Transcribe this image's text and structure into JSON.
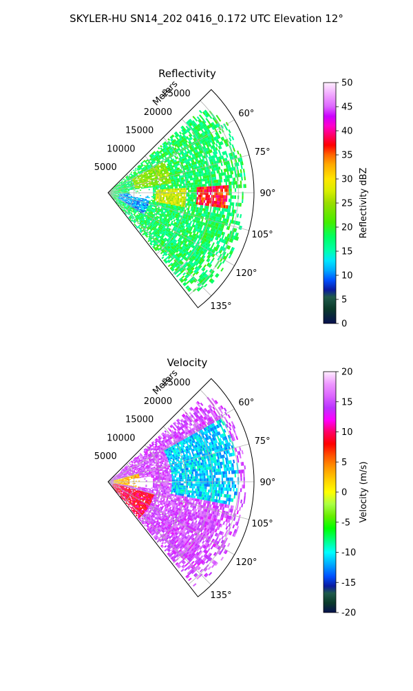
{
  "figure": {
    "suptitle": "SKYLER-HU  SN14_202  0416_0.172 UTC Elevation 12°"
  },
  "chart_data": [
    {
      "type": "heatmap",
      "projection": "polar-sector",
      "title": "Reflectivity",
      "range_axis_label": "Meters",
      "range_ticks": [
        5000,
        10000,
        15000,
        20000,
        25000
      ],
      "range_max": 28000,
      "azimuth_ticks": [
        "60°",
        "75°",
        "90°",
        "105°",
        "120°",
        "135°"
      ],
      "azimuth_tick_values": [
        60,
        75,
        90,
        105,
        120,
        135
      ],
      "azimuth_range": [
        45,
        142
      ],
      "grid": true,
      "colorbar": {
        "label": "Reflectivity dBZ",
        "min": 0,
        "max": 50,
        "ticks": [
          0,
          5,
          10,
          15,
          20,
          25,
          30,
          35,
          40,
          45,
          50
        ]
      },
      "echo_regions": [
        {
          "az_min": 48,
          "az_max": 140,
          "r_min": 500,
          "r_max": 26500,
          "value": 18
        },
        {
          "az_min": 85,
          "az_max": 96,
          "r_min": 17000,
          "r_max": 23000,
          "value": 37
        },
        {
          "az_min": 86,
          "az_max": 100,
          "r_min": 9000,
          "r_max": 15000,
          "value": 27
        },
        {
          "az_min": 60,
          "az_max": 80,
          "r_min": 5000,
          "r_max": 12000,
          "value": 24
        },
        {
          "az_min": 92,
          "az_max": 120,
          "r_min": 2000,
          "r_max": 8000,
          "value": 11
        }
      ]
    },
    {
      "type": "heatmap",
      "projection": "polar-sector",
      "title": "Velocity",
      "range_axis_label": "Meters",
      "range_ticks": [
        5000,
        10000,
        15000,
        20000,
        25000
      ],
      "range_max": 28000,
      "azimuth_ticks": [
        "60°",
        "75°",
        "90°",
        "105°",
        "120°",
        "135°"
      ],
      "azimuth_tick_values": [
        60,
        75,
        90,
        105,
        120,
        135
      ],
      "azimuth_range": [
        45,
        142
      ],
      "grid": true,
      "colorbar": {
        "label": "Velocity (m/s)",
        "min": -20,
        "max": 20,
        "ticks": [
          -20,
          -15,
          -10,
          -5,
          0,
          5,
          10,
          15,
          20
        ]
      },
      "echo_regions": [
        {
          "az_min": 48,
          "az_max": 140,
          "r_min": 500,
          "r_max": 26500,
          "value": 15
        },
        {
          "az_min": 60,
          "az_max": 100,
          "r_min": 12000,
          "r_max": 25000,
          "value": -11
        },
        {
          "az_min": 75,
          "az_max": 100,
          "r_min": 1000,
          "r_max": 6000,
          "value": 3
        },
        {
          "az_min": 105,
          "az_max": 140,
          "r_min": 1000,
          "r_max": 9000,
          "value": 9
        }
      ]
    }
  ]
}
